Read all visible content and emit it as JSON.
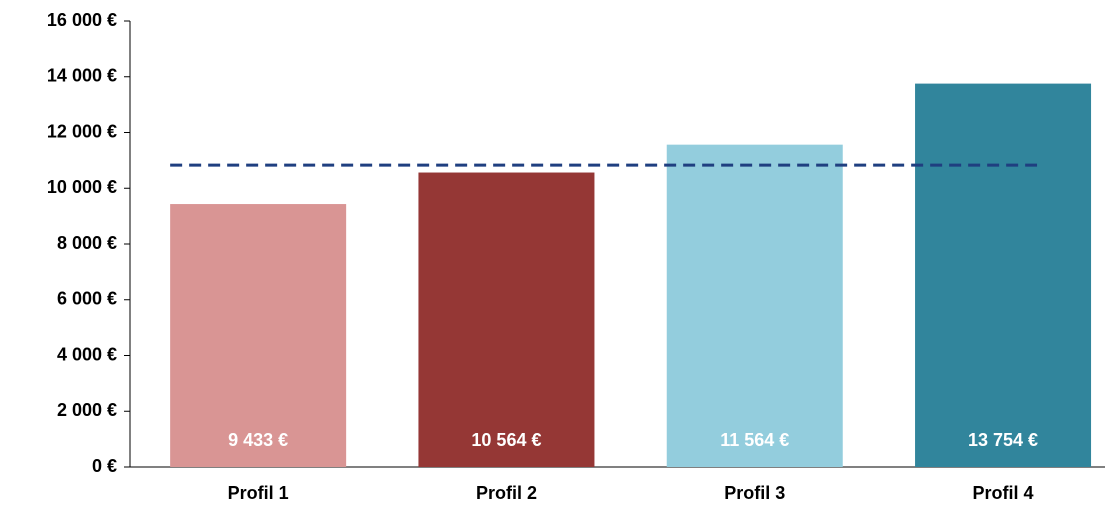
{
  "chart_data": {
    "type": "bar",
    "categories": [
      "Profil 1",
      "Profil 2",
      "Profil 3",
      "Profil 4"
    ],
    "values": [
      9433,
      10564,
      11564,
      13754
    ],
    "value_labels": [
      "9 433 €",
      "10 564 €",
      "11 564 €",
      "13 754 €"
    ],
    "colors": [
      "#d99594",
      "#953735",
      "#93cddd",
      "#31859c"
    ],
    "reference_line": {
      "value": 10830,
      "color": "#1f3f80"
    },
    "ylim": [
      0,
      16000
    ],
    "yticks": [
      {
        "value": 0,
        "label": "0 €"
      },
      {
        "value": 2000,
        "label": "2 000 €"
      },
      {
        "value": 4000,
        "label": "4 000 €"
      },
      {
        "value": 6000,
        "label": "6 000 €"
      },
      {
        "value": 8000,
        "label": "8 000 €"
      },
      {
        "value": 10000,
        "label": "10 000 €"
      },
      {
        "value": 12000,
        "label": "12 000 €"
      },
      {
        "value": 14000,
        "label": "14 000 €"
      },
      {
        "value": 16000,
        "label": "16 000 €"
      }
    ],
    "grid": false
  }
}
